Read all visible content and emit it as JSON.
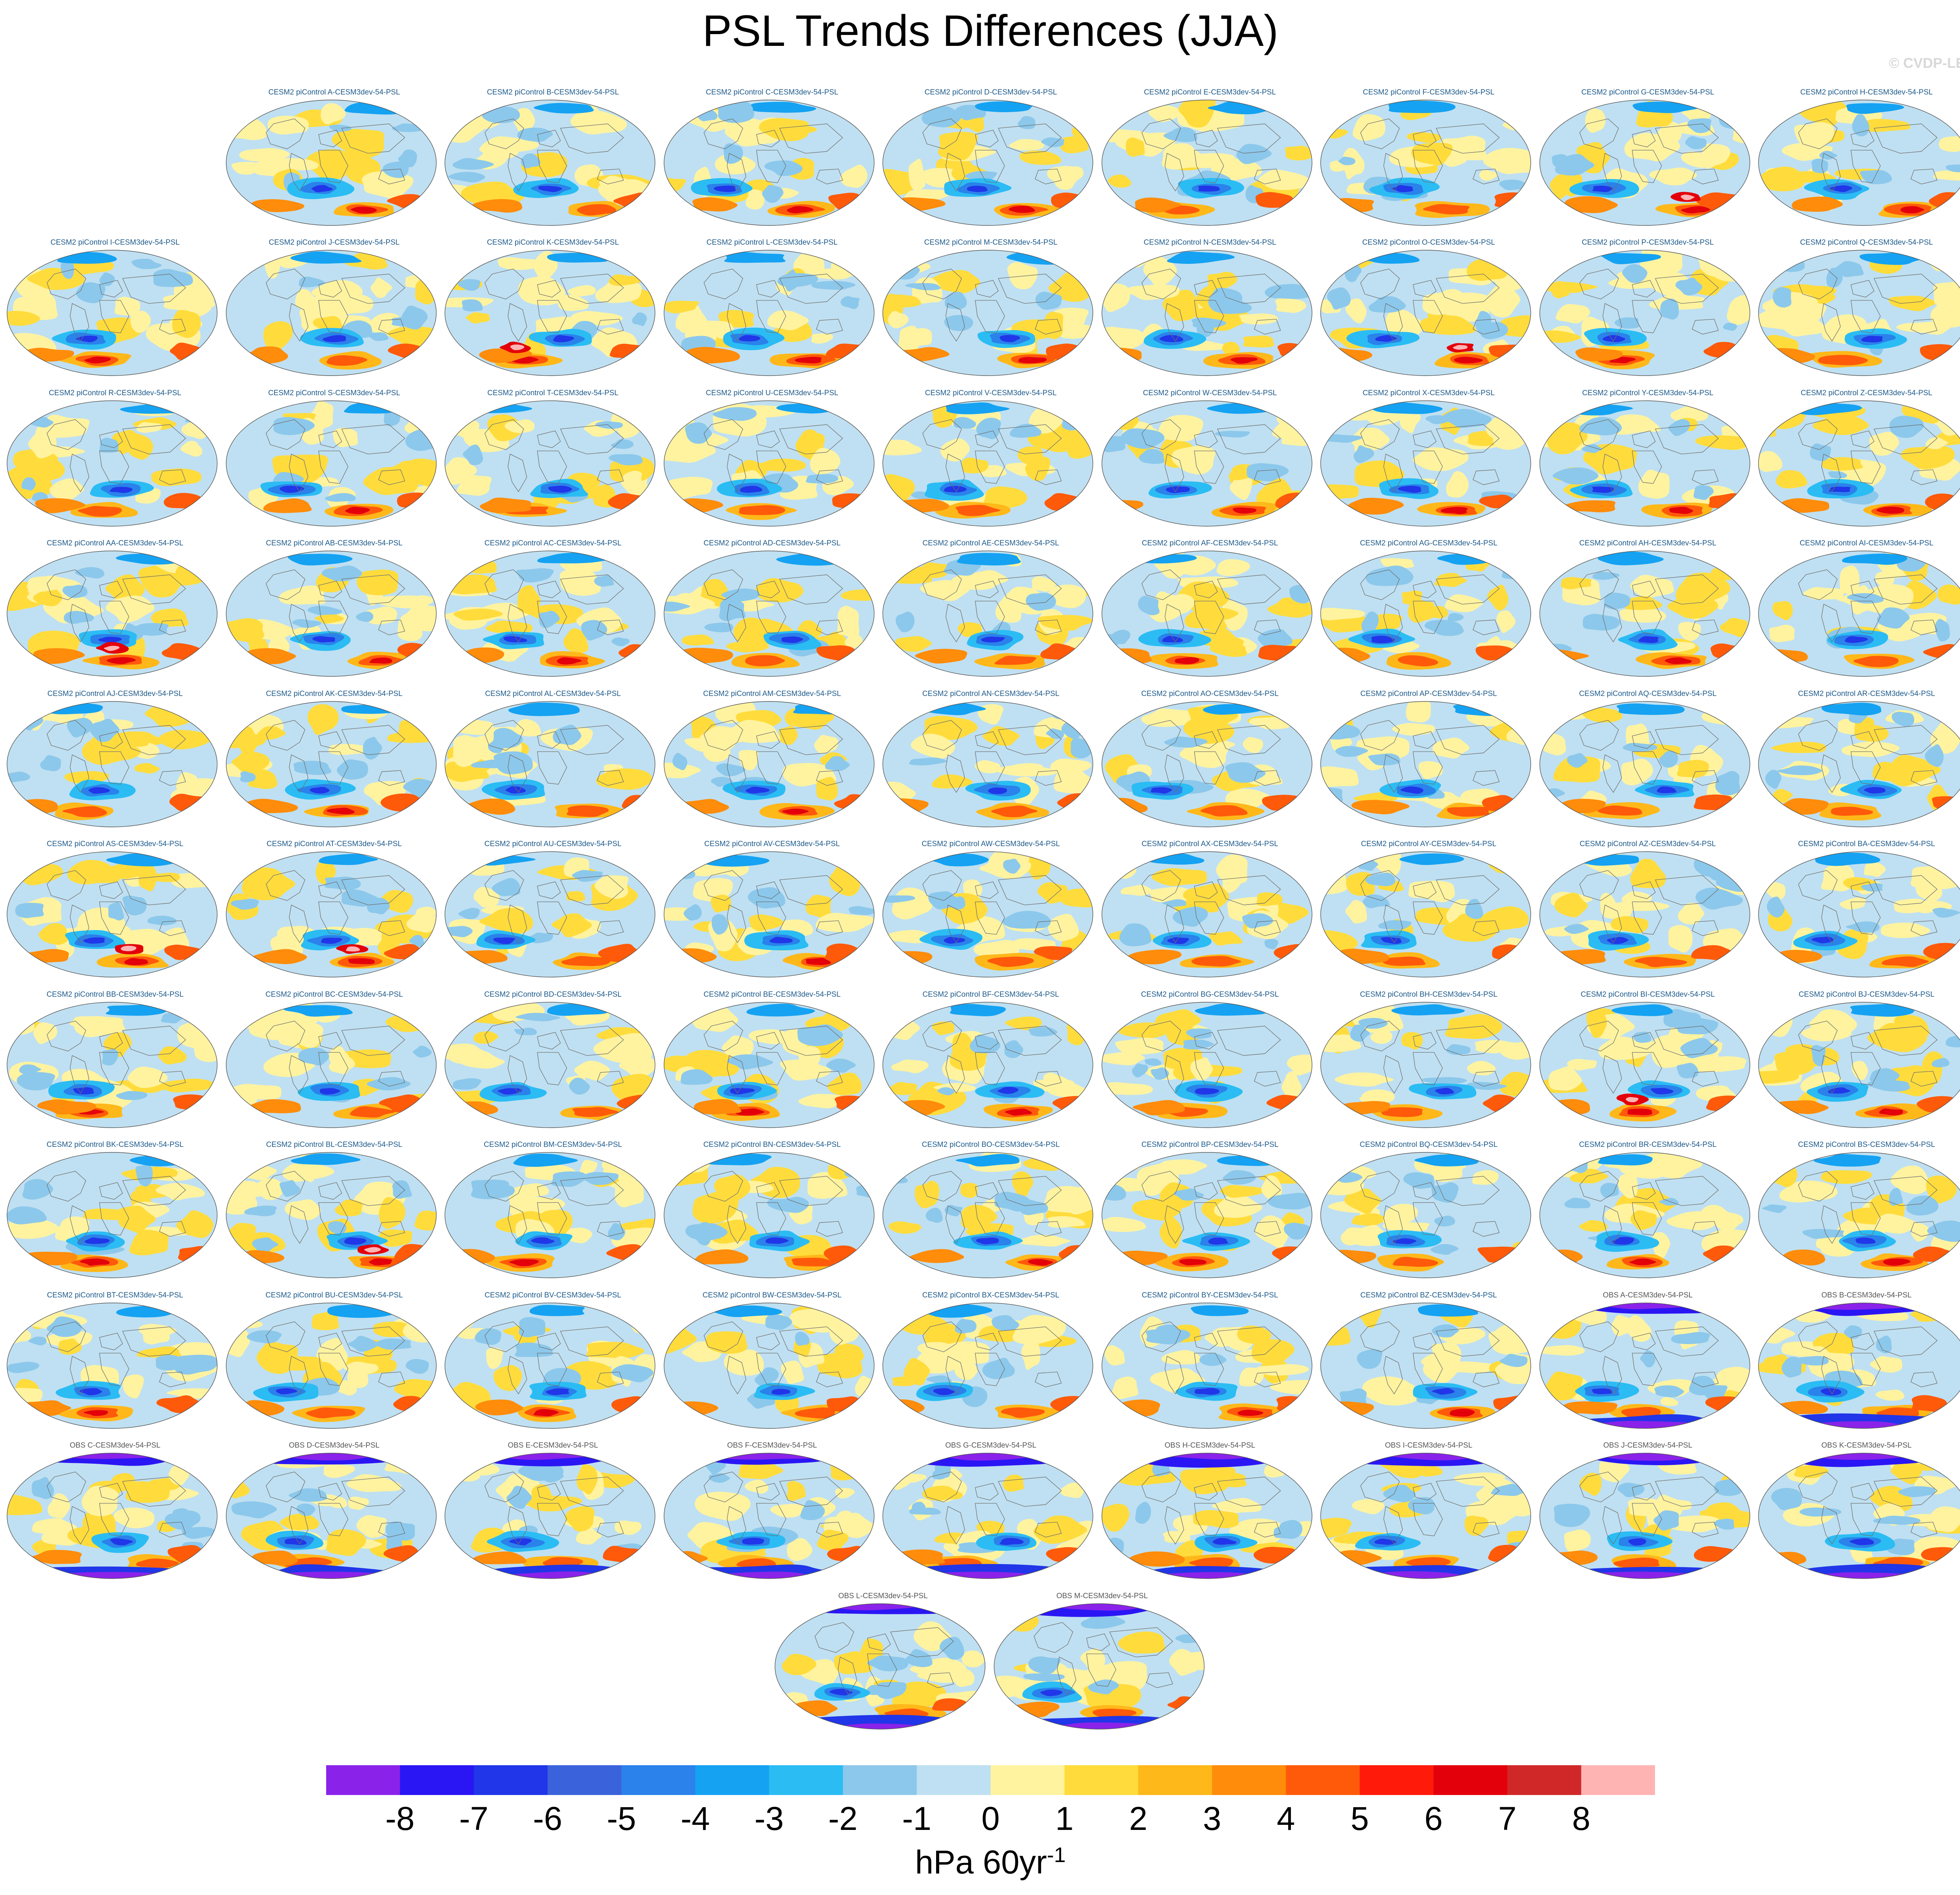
{
  "title": "PSL Trends Differences (JJA)",
  "credit": "© CVDP-LE",
  "units": {
    "base": "hPa 60yr",
    "exponent": "-1"
  },
  "chart_data": {
    "type": "map-grid",
    "projection": "robinson",
    "variable": "PSL",
    "season": "JJA",
    "panels": [
      "CESM2 piControl A-CESM3dev-54-PSL",
      "CESM2 piControl B-CESM3dev-54-PSL",
      "CESM2 piControl C-CESM3dev-54-PSL",
      "CESM2 piControl D-CESM3dev-54-PSL",
      "CESM2 piControl E-CESM3dev-54-PSL",
      "CESM2 piControl F-CESM3dev-54-PSL",
      "CESM2 piControl G-CESM3dev-54-PSL",
      "CESM2 piControl H-CESM3dev-54-PSL",
      "CESM2 piControl I-CESM3dev-54-PSL",
      "CESM2 piControl J-CESM3dev-54-PSL",
      "CESM2 piControl K-CESM3dev-54-PSL",
      "CESM2 piControl L-CESM3dev-54-PSL",
      "CESM2 piControl M-CESM3dev-54-PSL",
      "CESM2 piControl N-CESM3dev-54-PSL",
      "CESM2 piControl O-CESM3dev-54-PSL",
      "CESM2 piControl P-CESM3dev-54-PSL",
      "CESM2 piControl Q-CESM3dev-54-PSL",
      "CESM2 piControl R-CESM3dev-54-PSL",
      "CESM2 piControl S-CESM3dev-54-PSL",
      "CESM2 piControl T-CESM3dev-54-PSL",
      "CESM2 piControl U-CESM3dev-54-PSL",
      "CESM2 piControl V-CESM3dev-54-PSL",
      "CESM2 piControl W-CESM3dev-54-PSL",
      "CESM2 piControl X-CESM3dev-54-PSL",
      "CESM2 piControl Y-CESM3dev-54-PSL",
      "CESM2 piControl Z-CESM3dev-54-PSL",
      "CESM2 piControl AA-CESM3dev-54-PSL",
      "CESM2 piControl AB-CESM3dev-54-PSL",
      "CESM2 piControl AC-CESM3dev-54-PSL",
      "CESM2 piControl AD-CESM3dev-54-PSL",
      "CESM2 piControl AE-CESM3dev-54-PSL",
      "CESM2 piControl AF-CESM3dev-54-PSL",
      "CESM2 piControl AG-CESM3dev-54-PSL",
      "CESM2 piControl AH-CESM3dev-54-PSL",
      "CESM2 piControl AI-CESM3dev-54-PSL",
      "CESM2 piControl AJ-CESM3dev-54-PSL",
      "CESM2 piControl AK-CESM3dev-54-PSL",
      "CESM2 piControl AL-CESM3dev-54-PSL",
      "CESM2 piControl AM-CESM3dev-54-PSL",
      "CESM2 piControl AN-CESM3dev-54-PSL",
      "CESM2 piControl AO-CESM3dev-54-PSL",
      "CESM2 piControl AP-CESM3dev-54-PSL",
      "CESM2 piControl AQ-CESM3dev-54-PSL",
      "CESM2 piControl AR-CESM3dev-54-PSL",
      "CESM2 piControl AS-CESM3dev-54-PSL",
      "CESM2 piControl AT-CESM3dev-54-PSL",
      "CESM2 piControl AU-CESM3dev-54-PSL",
      "CESM2 piControl AV-CESM3dev-54-PSL",
      "CESM2 piControl AW-CESM3dev-54-PSL",
      "CESM2 piControl AX-CESM3dev-54-PSL",
      "CESM2 piControl AY-CESM3dev-54-PSL",
      "CESM2 piControl AZ-CESM3dev-54-PSL",
      "CESM2 piControl BA-CESM3dev-54-PSL",
      "CESM2 piControl BB-CESM3dev-54-PSL",
      "CESM2 piControl BC-CESM3dev-54-PSL",
      "CESM2 piControl BD-CESM3dev-54-PSL",
      "CESM2 piControl BE-CESM3dev-54-PSL",
      "CESM2 piControl BF-CESM3dev-54-PSL",
      "CESM2 piControl BG-CESM3dev-54-PSL",
      "CESM2 piControl BH-CESM3dev-54-PSL",
      "CESM2 piControl BI-CESM3dev-54-PSL",
      "CESM2 piControl BJ-CESM3dev-54-PSL",
      "CESM2 piControl BK-CESM3dev-54-PSL",
      "CESM2 piControl BL-CESM3dev-54-PSL",
      "CESM2 piControl BM-CESM3dev-54-PSL",
      "CESM2 piControl BN-CESM3dev-54-PSL",
      "CESM2 piControl BO-CESM3dev-54-PSL",
      "CESM2 piControl BP-CESM3dev-54-PSL",
      "CESM2 piControl BQ-CESM3dev-54-PSL",
      "CESM2 piControl BR-CESM3dev-54-PSL",
      "CESM2 piControl BS-CESM3dev-54-PSL",
      "CESM2 piControl BT-CESM3dev-54-PSL",
      "CESM2 piControl BU-CESM3dev-54-PSL",
      "CESM2 piControl BV-CESM3dev-54-PSL",
      "CESM2 piControl BW-CESM3dev-54-PSL",
      "CESM2 piControl BX-CESM3dev-54-PSL",
      "CESM2 piControl BY-CESM3dev-54-PSL",
      "CESM2 piControl BZ-CESM3dev-54-PSL",
      "OBS A-CESM3dev-54-PSL",
      "OBS B-CESM3dev-54-PSL",
      "OBS C-CESM3dev-54-PSL",
      "OBS D-CESM3dev-54-PSL",
      "OBS E-CESM3dev-54-PSL",
      "OBS F-CESM3dev-54-PSL",
      "OBS G-CESM3dev-54-PSL",
      "OBS H-CESM3dev-54-PSL",
      "OBS I-CESM3dev-54-PSL",
      "OBS J-CESM3dev-54-PSL",
      "OBS K-CESM3dev-54-PSL",
      "OBS L-CESM3dev-54-PSL",
      "OBS M-CESM3dev-54-PSL"
    ],
    "row_counts": [
      8,
      9,
      9,
      9,
      9,
      9,
      9,
      9,
      9,
      9,
      2
    ],
    "colorbar": {
      "levels": [
        -8,
        -7,
        -6,
        -5,
        -4,
        -3,
        -2,
        -1,
        0,
        1,
        2,
        3,
        4,
        5,
        6,
        7,
        8
      ],
      "colors": [
        "#8a22ea",
        "#2a16f5",
        "#2036e8",
        "#3a63db",
        "#2a82ea",
        "#15a2f2",
        "#2bbcf4",
        "#8cc8eb",
        "#bfe0f2",
        "#fff3a0",
        "#ffdc3c",
        "#ffb81a",
        "#ff8c0a",
        "#ff5a0a",
        "#ff1a0a",
        "#e3000a",
        "#d02828",
        "#ffb4b4"
      ]
    },
    "features": {
      "CESM2 piControl G-CESM3dev-54-PSL": "strong southern high",
      "CESM2 piControl K-CESM3dev-54-PSL": "strong southern high",
      "CESM2 piControl O-CESM3dev-54-PSL": "strong southern high",
      "CESM2 piControl AA-CESM3dev-54-PSL": "strong southern high",
      "CESM2 piControl AS-CESM3dev-54-PSL": "strong southern high",
      "CESM2 piControl AT-CESM3dev-54-PSL": "strong southern high",
      "CESM2 piControl BI-CESM3dev-54-PSL": "strong southern high",
      "CESM2 piControl BL-CESM3dev-54-PSL": "strong southern high"
    }
  }
}
